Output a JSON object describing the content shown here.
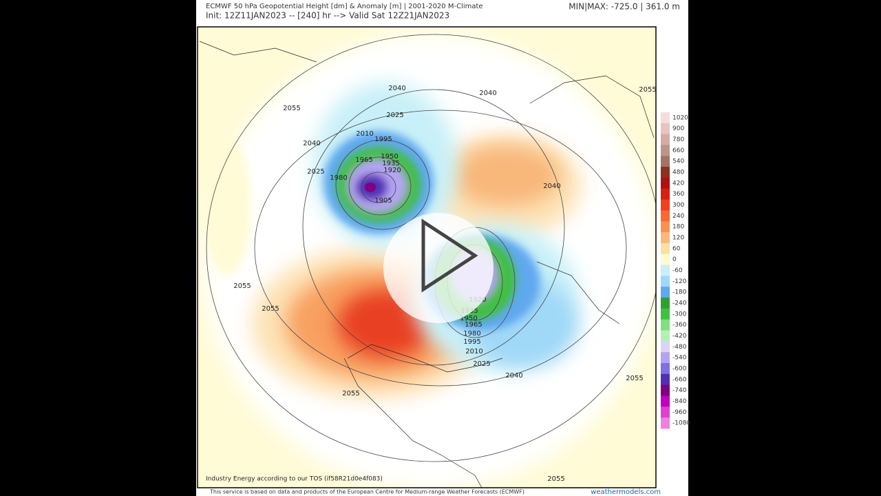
{
  "header": {
    "title": "ECMWF 50 hPa Geopotential Height [dm] & Anomaly [m] | 2001-2020 M-Climate",
    "subtitle": "Init: 12Z11JAN2023 -- [240] hr --> Valid Sat 12Z21JAN2023",
    "minmax": "MIN|MAX: -725.0 | 361.0 m"
  },
  "map": {
    "contour_labels": [
      "2040",
      "2040",
      "2055",
      "2055",
      "2025",
      "2010",
      "1995",
      "2040",
      "1950",
      "1935",
      "1920",
      "1965",
      "2025",
      "1980",
      "1905",
      "2040",
      "2055",
      "2055",
      "1920",
      "1935",
      "1950",
      "1965",
      "1980",
      "1995",
      "2010",
      "2025",
      "2040",
      "2055",
      "2055",
      "2055"
    ],
    "watermark": "Industry Energy according to our TOS (if58R21d0e4f083)"
  },
  "colorbar": {
    "labels": [
      "1020",
      "900",
      "780",
      "660",
      "540",
      "480",
      "420",
      "360",
      "300",
      "240",
      "180",
      "120",
      "60",
      "0",
      "-60",
      "-120",
      "-180",
      "-240",
      "-300",
      "-360",
      "-420",
      "-480",
      "-540",
      "-600",
      "-660",
      "-740",
      "-840",
      "-960",
      "-1080"
    ],
    "colors": [
      "#f6dcdc",
      "#e8c4c0",
      "#d4aca4",
      "#bc948a",
      "#a47462",
      "#8c3020",
      "#b01010",
      "#d82010",
      "#f04020",
      "#f86a32",
      "#f89252",
      "#f8ba7a",
      "#f8e2a2",
      "#fffad0",
      "#c8f0f8",
      "#a0d8f8",
      "#60a8f0",
      "#30a030",
      "#40c040",
      "#80e080",
      "#b4f0b4",
      "#dcd4f8",
      "#b4a4f0",
      "#8070e0",
      "#5030b0",
      "#800080",
      "#c000c0",
      "#e040d0",
      "#f080e0"
    ]
  },
  "footer": {
    "notice": "This service is based on data and products of the European Centre for Medium-range Weather Forecasts (ECMWF)",
    "brand": "weathermodels.com"
  }
}
